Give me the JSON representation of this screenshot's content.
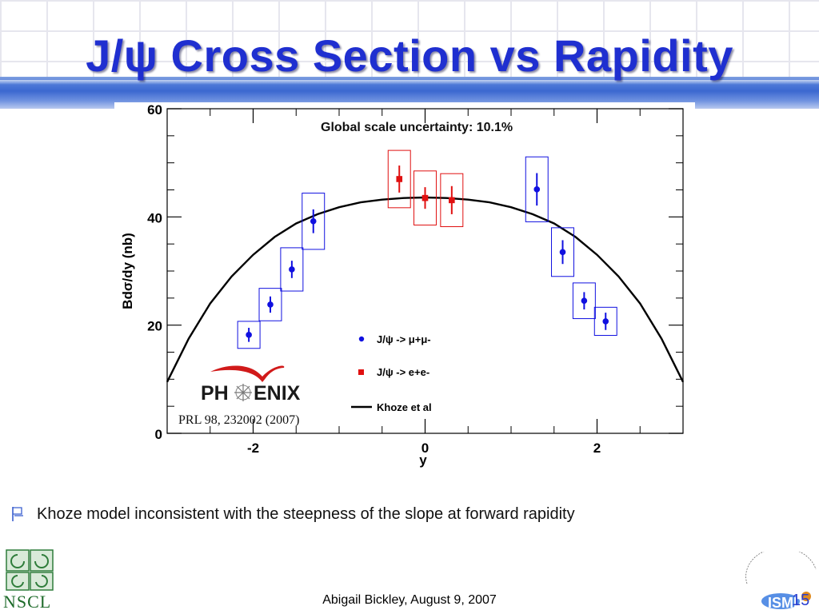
{
  "slide": {
    "title": "J/ψ Cross Section vs Rapidity",
    "bullet": "Khoze model inconsistent with the steepness of the slope at forward rapidity",
    "footer": "Abigail Bickley, August 9, 2007",
    "slide_number": "15",
    "logos": {
      "left": "NSCL",
      "right": "ISMD",
      "plot": "PHENIX"
    }
  },
  "chart_data": {
    "type": "scatter",
    "xlabel": "y",
    "ylabel": "Bdσ/dy (nb)",
    "xlim": [
      -3.0,
      3.0
    ],
    "ylim": [
      0,
      60
    ],
    "x_ticks": [
      "-2",
      "0",
      "2"
    ],
    "y_ticks": [
      "0",
      "20",
      "40",
      "60"
    ],
    "grid": false,
    "annotation": "Global scale uncertainty: 10.1%",
    "citation": "PRL 98, 232002 (2007)",
    "colors": {
      "mumu": "#1010e0",
      "ee": "#e01010",
      "curve": "#000000"
    },
    "series": [
      {
        "name": "J/ψ -> μ+μ-",
        "marker": "circle",
        "points": [
          {
            "x": -2.05,
            "y": 18.2,
            "err": 1.3,
            "sys": 2.5
          },
          {
            "x": -1.8,
            "y": 23.8,
            "err": 1.5,
            "sys": 3.0
          },
          {
            "x": -1.55,
            "y": 30.3,
            "err": 1.6,
            "sys": 4.0
          },
          {
            "x": -1.3,
            "y": 39.2,
            "err": 2.2,
            "sys": 5.2
          },
          {
            "x": 1.3,
            "y": 45.1,
            "err": 3.0,
            "sys": 6.0
          },
          {
            "x": 1.6,
            "y": 33.5,
            "err": 2.2,
            "sys": 4.5
          },
          {
            "x": 1.85,
            "y": 24.5,
            "err": 1.6,
            "sys": 3.3
          },
          {
            "x": 2.1,
            "y": 20.7,
            "err": 1.6,
            "sys": 2.6
          }
        ]
      },
      {
        "name": "J/ψ -> e+e-",
        "marker": "square",
        "points": [
          {
            "x": -0.3,
            "y": 47.0,
            "err": 2.5,
            "sys": 5.3
          },
          {
            "x": 0.0,
            "y": 43.5,
            "err": 2.0,
            "sys": 5.0
          },
          {
            "x": 0.31,
            "y": 43.1,
            "err": 2.6,
            "sys": 4.9
          }
        ]
      },
      {
        "name": "Khoze et al",
        "marker": "line",
        "curve": [
          {
            "x": -3.0,
            "y": 9.5
          },
          {
            "x": -2.75,
            "y": 17.5
          },
          {
            "x": -2.5,
            "y": 24.0
          },
          {
            "x": -2.25,
            "y": 29.0
          },
          {
            "x": -2.0,
            "y": 33.0
          },
          {
            "x": -1.75,
            "y": 36.3
          },
          {
            "x": -1.5,
            "y": 38.8
          },
          {
            "x": -1.25,
            "y": 40.5
          },
          {
            "x": -1.0,
            "y": 41.8
          },
          {
            "x": -0.75,
            "y": 42.7
          },
          {
            "x": -0.5,
            "y": 43.2
          },
          {
            "x": -0.25,
            "y": 43.5
          },
          {
            "x": 0.0,
            "y": 43.6
          },
          {
            "x": 0.25,
            "y": 43.5
          },
          {
            "x": 0.5,
            "y": 43.2
          },
          {
            "x": 0.75,
            "y": 42.7
          },
          {
            "x": 1.0,
            "y": 41.8
          },
          {
            "x": 1.25,
            "y": 40.5
          },
          {
            "x": 1.5,
            "y": 38.8
          },
          {
            "x": 1.75,
            "y": 36.3
          },
          {
            "x": 2.0,
            "y": 33.0
          },
          {
            "x": 2.25,
            "y": 29.0
          },
          {
            "x": 2.5,
            "y": 24.0
          },
          {
            "x": 2.75,
            "y": 17.5
          },
          {
            "x": 3.0,
            "y": 9.5
          }
        ]
      }
    ]
  }
}
